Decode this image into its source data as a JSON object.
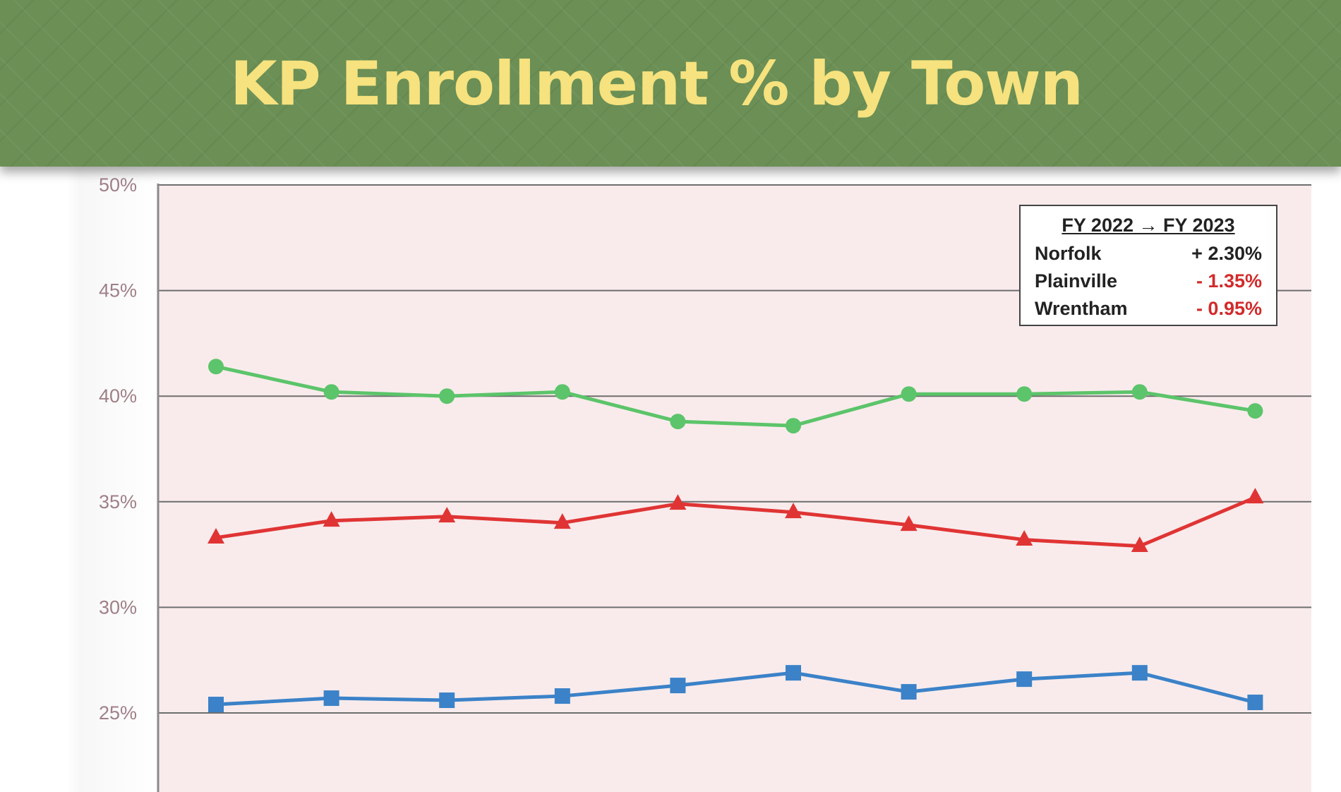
{
  "banner": {
    "title": "KP Enrollment % by Town"
  },
  "legend": {
    "header": "FY 2022 → FY 2023",
    "rows": [
      {
        "town": "Norfolk",
        "change": "+ 2.30%",
        "color": "#222222"
      },
      {
        "town": "Plainville",
        "change": "- 1.35%",
        "color": "#d22a2a"
      },
      {
        "town": "Wrentham",
        "change": "- 0.95%",
        "color": "#d22a2a"
      }
    ]
  },
  "chart_data": {
    "type": "line",
    "title": "KP Enrollment % by Town",
    "xlabel": "",
    "ylabel": "",
    "ylim": [
      22,
      50
    ],
    "yticks": [
      "25%",
      "30%",
      "35%",
      "40%",
      "45%",
      "50%"
    ],
    "grid": true,
    "legend_placement": "top-right",
    "x": [
      1,
      2,
      3,
      4,
      5,
      6,
      7,
      8,
      9,
      10
    ],
    "series": [
      {
        "color": "#5cc46a",
        "marker": "circle",
        "values": [
          41.4,
          40.2,
          40.0,
          40.2,
          38.8,
          38.6,
          40.1,
          40.1,
          40.2,
          39.3
        ]
      },
      {
        "color": "#e03434",
        "marker": "triangle",
        "values": [
          33.3,
          34.1,
          34.3,
          34.0,
          34.9,
          34.5,
          33.9,
          33.2,
          32.9,
          35.2
        ]
      },
      {
        "color": "#3b82c8",
        "marker": "square",
        "values": [
          25.4,
          25.7,
          25.6,
          25.8,
          26.3,
          26.9,
          26.0,
          26.6,
          26.9,
          25.5
        ]
      }
    ]
  }
}
